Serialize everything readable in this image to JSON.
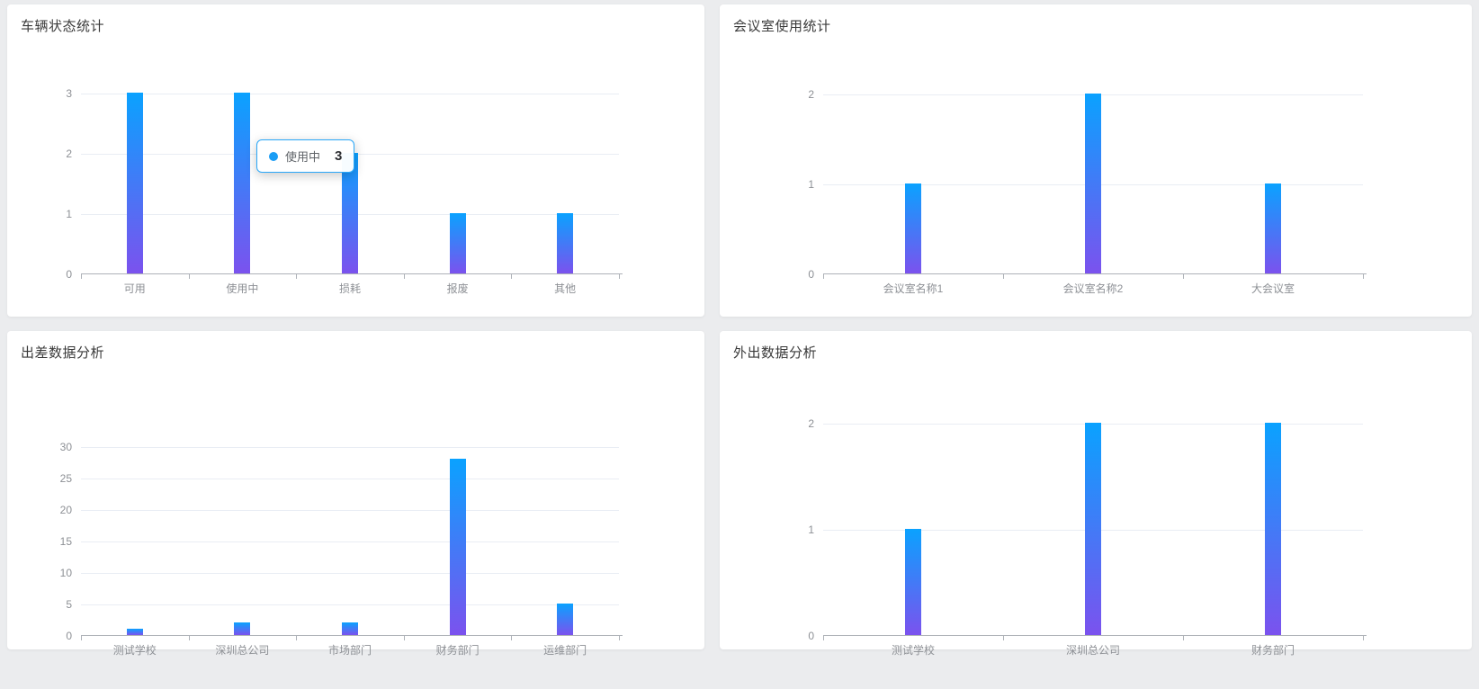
{
  "page": {
    "background_color": "#ebecee",
    "card_background": "#ffffff"
  },
  "tooltip": {
    "series_label": "使用中",
    "value": "3",
    "marker_color": "#1a9df5",
    "border_color": "#2aa7f8"
  },
  "chart_data": [
    {
      "type": "bar",
      "title": "车辆状态统计",
      "categories": [
        "可用",
        "使用中",
        "损耗",
        "报废",
        "其他"
      ],
      "values": [
        3,
        3,
        2,
        1,
        1
      ],
      "xlabel": "",
      "ylabel": "",
      "ylim": [
        0,
        3
      ],
      "yticks": [
        0,
        1,
        2,
        3
      ],
      "grid": true,
      "legend": false,
      "bar_color_top": "#0aa2ff",
      "bar_color_bottom": "#7b52ee"
    },
    {
      "type": "bar",
      "title": "会议室使用统计",
      "categories": [
        "会议室名称1",
        "会议室名称2",
        "大会议室"
      ],
      "values": [
        1,
        2,
        1
      ],
      "xlabel": "",
      "ylabel": "",
      "ylim": [
        0,
        2
      ],
      "yticks": [
        0,
        1,
        2
      ],
      "grid": true,
      "legend": false,
      "bar_color_top": "#0aa2ff",
      "bar_color_bottom": "#7b52ee"
    },
    {
      "type": "bar",
      "title": "出差数据分析",
      "categories": [
        "测试学校",
        "深圳总公司",
        "市场部门",
        "财务部门",
        "运维部门"
      ],
      "values": [
        1,
        2,
        2,
        28,
        5
      ],
      "xlabel": "",
      "ylabel": "",
      "ylim": [
        0,
        30
      ],
      "yticks": [
        0,
        5,
        10,
        15,
        20,
        25,
        30
      ],
      "grid": true,
      "legend": false,
      "bar_color_top": "#0aa2ff",
      "bar_color_bottom": "#7b52ee"
    },
    {
      "type": "bar",
      "title": "外出数据分析",
      "categories": [
        "测试学校",
        "深圳总公司",
        "财务部门"
      ],
      "values": [
        1,
        2,
        2
      ],
      "xlabel": "",
      "ylabel": "",
      "ylim": [
        0,
        2
      ],
      "yticks": [
        0,
        1,
        2
      ],
      "grid": true,
      "legend": false,
      "bar_color_top": "#0aa2ff",
      "bar_color_bottom": "#7b52ee"
    }
  ]
}
